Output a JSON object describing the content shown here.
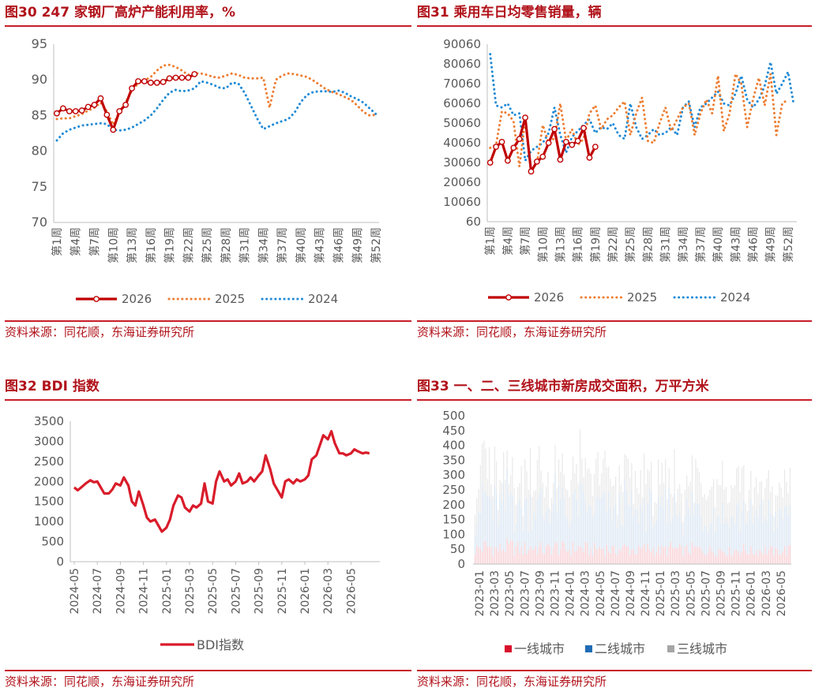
{
  "panels": [
    {
      "title": "图30  247 家钢厂高炉产能利用率，%",
      "source": "资料来源：同花顺，东海证券研究所",
      "chart_data": {
        "type": "line",
        "ylim": [
          70,
          95
        ],
        "yticks": [
          "95",
          "90",
          "85",
          "80",
          "75",
          "70"
        ],
        "x_tick_labels": [
          "第1周",
          "第4周",
          "第7周",
          "第10周",
          "第13周",
          "第16周",
          "第19周",
          "第22周",
          "第25周",
          "第28周",
          "第31周",
          "第34周",
          "第37周",
          "第40周",
          "第43周",
          "第46周",
          "第49周",
          "第52周"
        ],
        "x_count": 52,
        "series": [
          {
            "name": "2026",
            "style": "solid-marker",
            "color": "#c00000",
            "values": [
              85.3,
              86.0,
              85.6,
              85.6,
              85.7,
              86.2,
              86.5,
              87.4,
              85.1,
              83.0,
              85.6,
              86.5,
              88.8,
              89.8,
              89.8,
              89.6,
              89.6,
              89.7,
              90.2,
              90.3,
              90.3,
              90.3,
              90.8
            ]
          },
          {
            "name": "2025",
            "style": "dotted",
            "color": "#ed7d31",
            "values": [
              84.5,
              84.6,
              84.6,
              84.9,
              85.2,
              85.7,
              86.1,
              86.8,
              85.6,
              83.7,
              85.5,
              86.8,
              88.5,
              89.5,
              89.9,
              90.4,
              91.3,
              92.0,
              92.1,
              91.8,
              91.3,
              90.7,
              90.9,
              90.9,
              90.7,
              90.4,
              90.3,
              90.6,
              90.9,
              90.7,
              90.3,
              90.2,
              90.2,
              90.3,
              86.1,
              90.0,
              90.6,
              90.9,
              90.8,
              90.6,
              90.4,
              89.9,
              89.3,
              88.7,
              88.3,
              88.0,
              87.6,
              87.2,
              86.4,
              85.5,
              85.0,
              85.1
            ]
          },
          {
            "name": "2024",
            "style": "dotted",
            "color": "#1f8ad6",
            "values": [
              81.5,
              82.5,
              83.0,
              83.3,
              83.6,
              83.7,
              83.8,
              83.9,
              83.8,
              83.0,
              82.9,
              83.0,
              83.3,
              83.8,
              84.3,
              85.0,
              86.0,
              87.2,
              88.2,
              88.6,
              88.4,
              88.5,
              88.8,
              89.8,
              89.6,
              89.3,
              88.9,
              88.8,
              89.6,
              89.5,
              88.2,
              86.4,
              84.6,
              83.1,
              83.5,
              83.9,
              84.2,
              84.5,
              85.4,
              86.9,
              87.9,
              88.3,
              88.4,
              88.4,
              88.3,
              88.5,
              88.2,
              87.7,
              87.3,
              86.8,
              86.0,
              85.2
            ]
          }
        ]
      }
    },
    {
      "title": "图31  乘用车日均零售销量，辆",
      "source": "资料来源：同花顺，东海证券研究所",
      "chart_data": {
        "type": "line",
        "ylim": [
          60,
          90060
        ],
        "yticks": [
          "90060",
          "80060",
          "70060",
          "60060",
          "50060",
          "40060",
          "30060",
          "20060",
          "10060",
          "60"
        ],
        "x_tick_labels": [
          "第1周",
          "第4周",
          "第7周",
          "第10周",
          "第13周",
          "第16周",
          "第19周",
          "第22周",
          "第25周",
          "第28周",
          "第31周",
          "第34周",
          "第37周",
          "第40周",
          "第43周",
          "第46周",
          "第49周",
          "第52周"
        ],
        "x_count": 53,
        "series": [
          {
            "name": "2026",
            "style": "solid-marker",
            "color": "#c00000",
            "values": [
              30000,
              38000,
              40500,
              31000,
              37500,
              42000,
              52800,
              25500,
              30500,
              33000,
              40000,
              47000,
              31500,
              40500,
              39000,
              41000,
              47500,
              32500,
              38000
            ]
          },
          {
            "name": "2025",
            "style": "dotted",
            "color": "#ed7d31",
            "values": [
              37500,
              39000,
              56000,
              55000,
              51000,
              28000,
              52000,
              26000,
              30000,
              49000,
              40000,
              42500,
              60000,
              41000,
              47000,
              39000,
              42000,
              55000,
              59000,
              47000,
              52000,
              54000,
              58000,
              61000,
              44000,
              55000,
              63000,
              41000,
              40000,
              50000,
              58000,
              46000,
              52000,
              58000,
              60000,
              44000,
              55000,
              62000,
              55000,
              74000,
              46000,
              55000,
              75000,
              70000,
              48000,
              62000,
              73000,
              59000,
              75000,
              44000,
              60000,
              62000
            ]
          },
          {
            "name": "2024",
            "style": "dotted",
            "color": "#1f8ad6",
            "values": [
              85000,
              59000,
              58000,
              60000,
              54000,
              55000,
              31000,
              36000,
              38000,
              40000,
              45000,
              58000,
              44000,
              35000,
              43000,
              46000,
              49000,
              52000,
              45000,
              48000,
              47000,
              50000,
              44000,
              42000,
              60000,
              48000,
              42000,
              44000,
              47000,
              44000,
              45000,
              48000,
              44000,
              58000,
              61000,
              48000,
              58000,
              60000,
              63000,
              66000,
              60000,
              59000,
              65000,
              74000,
              62000,
              58000,
              62000,
              69000,
              81000,
              65000,
              70000,
              76000,
              59000
            ]
          }
        ]
      }
    },
    {
      "title": "图32  BDI 指数",
      "source": "资料来源：同花顺，东海证券研究所",
      "chart_data": {
        "type": "line",
        "ylim": [
          0,
          3500
        ],
        "yticks": [
          "3500",
          "3000",
          "2500",
          "2000",
          "1500",
          "1000",
          "500",
          "0"
        ],
        "x_tick_labels": [
          "2024-05",
          "2024-07",
          "2024-09",
          "2024-11",
          "2025-01",
          "2025-03",
          "2025-05",
          "2025-07",
          "2025-09",
          "2025-11",
          "2026-01",
          "2026-03",
          "2026-05"
        ],
        "series": [
          {
            "name": "BDI指数",
            "color": "#d91c2a",
            "x_months": [
              0,
              0.3,
              0.6,
              1.0,
              1.4,
              1.7,
              2.0,
              2.3,
              2.6,
              3.0,
              3.3,
              3.6,
              4.0,
              4.3,
              4.7,
              5.0,
              5.3,
              5.6,
              6.0,
              6.3,
              6.6,
              7.0,
              7.3,
              7.6,
              8.0,
              8.3,
              8.6,
              9.0,
              9.3,
              9.6,
              10.0,
              10.3,
              10.6,
              11.0,
              11.3,
              11.6,
              12.0,
              12.3,
              12.6,
              13.0,
              13.3,
              13.6,
              14.0,
              14.3,
              14.6,
              15.0,
              15.3,
              15.6,
              16.0,
              16.3,
              16.6,
              17.0,
              17.3,
              17.6,
              18.0,
              18.3,
              18.6,
              19.0,
              19.3,
              19.6,
              20.0,
              20.3,
              20.6,
              21.0,
              21.3,
              21.6,
              22.0,
              22.3,
              22.6,
              23.0,
              23.3,
              23.6,
              24.0,
              24.3,
              24.6,
              25.0,
              25.3,
              25.6
            ],
            "values": [
              1850,
              1780,
              1850,
              1950,
              2030,
              1980,
              2000,
              1850,
              1700,
              1700,
              1800,
              1950,
              1900,
              2100,
              1900,
              1500,
              1400,
              1750,
              1400,
              1100,
              1000,
              1050,
              900,
              750,
              850,
              1050,
              1400,
              1650,
              1600,
              1350,
              1250,
              1400,
              1350,
              1450,
              1950,
              1500,
              1450,
              2000,
              2250,
              2000,
              2050,
              1900,
              2000,
              2200,
              1950,
              2000,
              2100,
              2000,
              2150,
              2250,
              2650,
              2300,
              1950,
              1800,
              1600,
              2000,
              2050,
              1950,
              2050,
              2000,
              2050,
              2150,
              2550,
              2650,
              2900,
              3150,
              3050,
              3250,
              2950,
              2700,
              2700,
              2650,
              2700,
              2800,
              2750,
              2700,
              2720,
              2700
            ]
          }
        ]
      }
    },
    {
      "title": "图33  一、二、三线城市新房成交面积，万平方米",
      "source": "资料来源：同花顺，东海证券研究所",
      "chart_data": {
        "type": "bar",
        "stacked": true,
        "ylim": [
          0,
          500
        ],
        "yticks": [
          "500",
          "450",
          "400",
          "350",
          "300",
          "250",
          "200",
          "150",
          "100",
          "50",
          "0"
        ],
        "x_tick_labels": [
          "2023-01",
          "2023-03",
          "2023-05",
          "2023-07",
          "2023-09",
          "2023-11",
          "2024-01",
          "2024-03",
          "2024-05",
          "2024-07",
          "2024-09",
          "2024-11",
          "2025-01",
          "2025-03",
          "2025-05",
          "2025-07",
          "2025-09",
          "2025-11",
          "2026-01",
          "2026-03",
          "2026-05"
        ],
        "series": [
          {
            "name": "一线城市",
            "color": "#d9102b",
            "level": "low, about 20-90 per week"
          },
          {
            "name": "二线城市",
            "color": "#1f6cb5",
            "level": "mid, about 100-300 per week"
          },
          {
            "name": "三线城市",
            "color": "#a6a6a6",
            "level": "about 150-450 per week"
          }
        ]
      }
    }
  ]
}
